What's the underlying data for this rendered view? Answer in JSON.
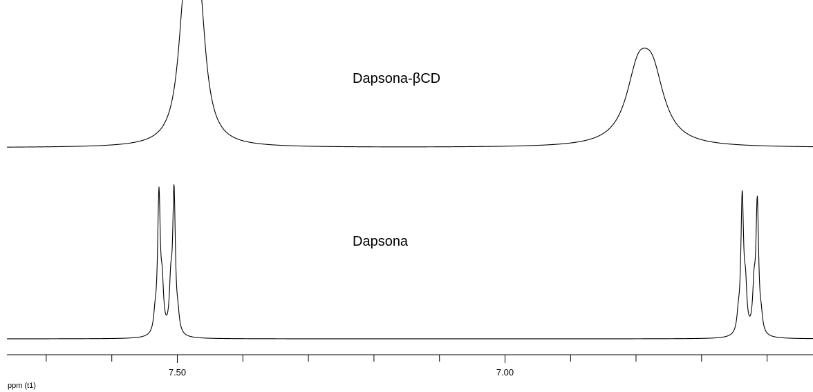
{
  "chart_data": {
    "type": "line",
    "xlabel": "ppm (t1)",
    "x_axis": {
      "reversed": true,
      "xlim": [
        7.76,
        6.53
      ],
      "major_ticks": [
        7.5,
        7.0
      ],
      "tick_labels": [
        "7.50",
        "7.00"
      ],
      "minor_ticks": [
        7.7,
        7.6,
        7.4,
        7.3,
        7.2,
        7.1,
        6.9,
        6.8,
        6.7,
        6.6
      ]
    },
    "grid": false,
    "legend": "none",
    "series": [
      {
        "name": "Dapsona-βCD",
        "peaks": [
          {
            "ppm": 7.488,
            "height": 1.0,
            "width": 0.012
          },
          {
            "ppm": 7.467,
            "height": 1.0,
            "width": 0.012
          },
          {
            "ppm": 6.797,
            "height": 0.46,
            "width": 0.022
          },
          {
            "ppm": 6.775,
            "height": 0.44,
            "width": 0.022
          }
        ]
      },
      {
        "name": "Dapsona",
        "peaks": [
          {
            "ppm": 7.528,
            "height": 1.0,
            "width": 0.0025
          },
          {
            "ppm": 7.523,
            "height": 0.28,
            "width": 0.0025
          },
          {
            "ppm": 7.51,
            "height": 0.3,
            "width": 0.0025
          },
          {
            "ppm": 7.505,
            "height": 1.02,
            "width": 0.0025
          },
          {
            "ppm": 7.534,
            "height": 0.1,
            "width": 0.0025
          },
          {
            "ppm": 7.499,
            "height": 0.09,
            "width": 0.0025
          },
          {
            "ppm": 6.638,
            "height": 0.98,
            "width": 0.0025
          },
          {
            "ppm": 6.633,
            "height": 0.28,
            "width": 0.0025
          },
          {
            "ppm": 6.62,
            "height": 0.28,
            "width": 0.0025
          },
          {
            "ppm": 6.615,
            "height": 0.94,
            "width": 0.0025
          },
          {
            "ppm": 6.644,
            "height": 0.1,
            "width": 0.0025
          },
          {
            "ppm": 6.609,
            "height": 0.09,
            "width": 0.0025
          }
        ]
      }
    ]
  }
}
